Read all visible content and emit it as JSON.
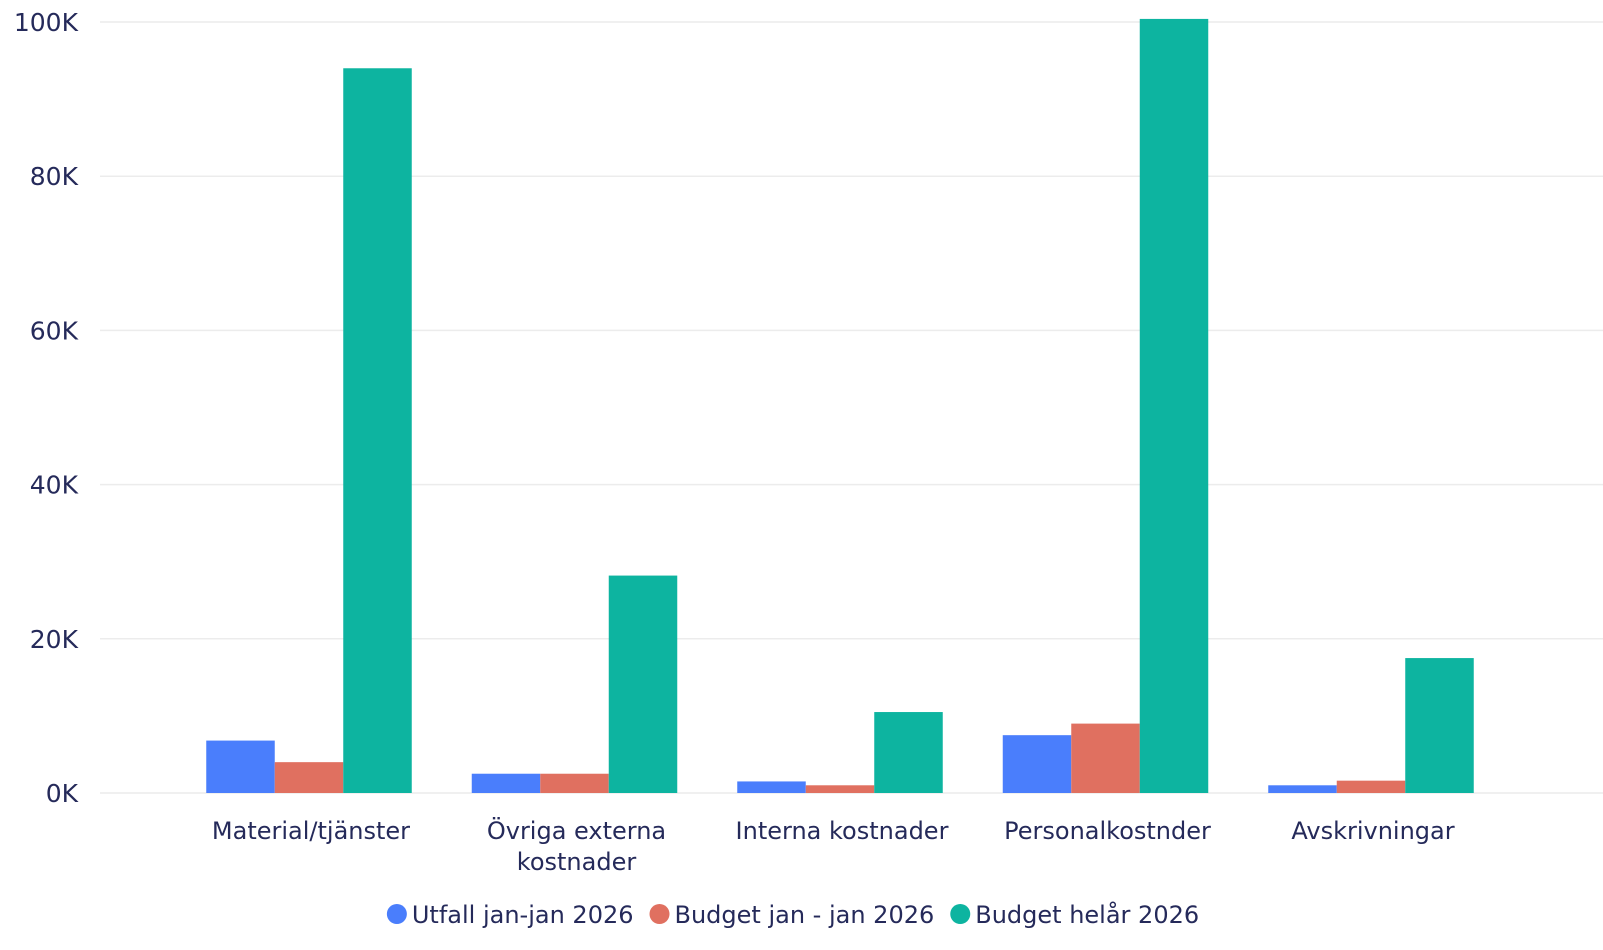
{
  "chart_data": {
    "type": "bar",
    "categories": [
      [
        "Material/tjänster"
      ],
      [
        "Övriga externa",
        "kostnader"
      ],
      [
        "Interna kostnader"
      ],
      [
        "Personalkostnder"
      ],
      [
        "Avskrivningar"
      ]
    ],
    "series": [
      {
        "name": "Utfall jan-jan 2026",
        "color": "#4a7efc",
        "values": [
          6800,
          2500,
          1500,
          7500,
          1000
        ]
      },
      {
        "name": "Budget jan - jan 2026",
        "color": "#e07060",
        "values": [
          4000,
          2500,
          1000,
          9000,
          1600
        ]
      },
      {
        "name": "Budget helår 2026",
        "color": "#0db4a0",
        "values": [
          94000,
          28200,
          10500,
          100400,
          17500
        ]
      }
    ],
    "yticks": [
      0,
      20000,
      40000,
      60000,
      80000,
      100000
    ],
    "ytick_labels": [
      "0K",
      "20K",
      "40K",
      "60K",
      "80K",
      "100K"
    ],
    "ylim": [
      0,
      100000
    ],
    "grid": true,
    "legend_position": "bottom-center"
  }
}
